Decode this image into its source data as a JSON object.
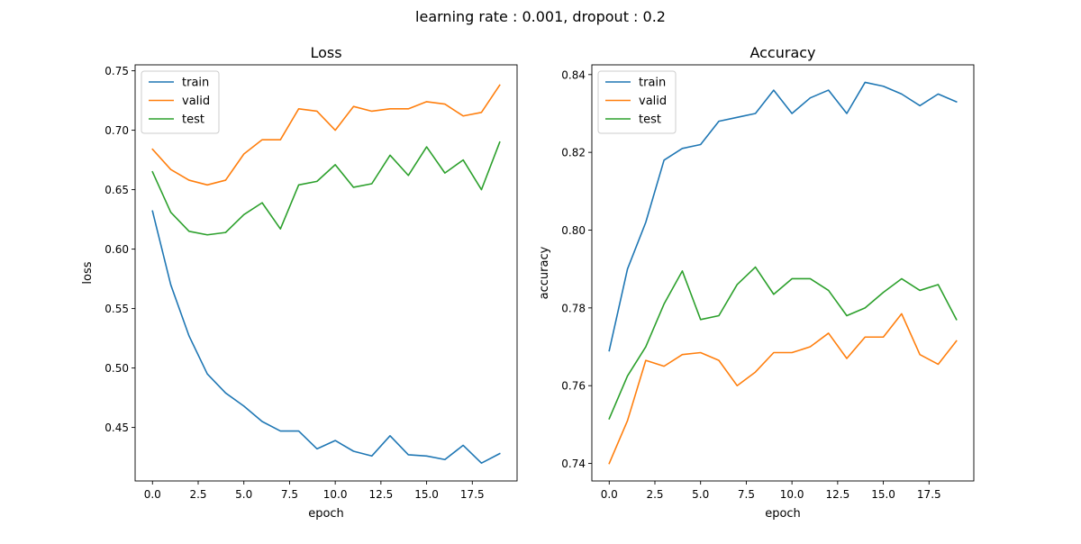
{
  "figure": {
    "title": "learning rate : 0.001, dropout : 0.2"
  },
  "chart_data": [
    {
      "type": "line",
      "title": "Loss",
      "xlabel": "epoch",
      "ylabel": "loss",
      "xlim": [
        -0.95,
        19.95
      ],
      "ylim": [
        0.405,
        0.755
      ],
      "xticks": [
        0.0,
        2.5,
        5.0,
        7.5,
        10.0,
        12.5,
        15.0,
        17.5
      ],
      "xtick_labels": [
        "0.0",
        "2.5",
        "5.0",
        "7.5",
        "10.0",
        "12.5",
        "15.0",
        "17.5"
      ],
      "yticks": [
        0.45,
        0.5,
        0.55,
        0.6,
        0.65,
        0.7,
        0.75
      ],
      "ytick_labels": [
        "0.45",
        "0.50",
        "0.55",
        "0.60",
        "0.65",
        "0.70",
        "0.75"
      ],
      "grid": false,
      "legend": "top-left",
      "x": [
        0,
        1,
        2,
        3,
        4,
        5,
        6,
        7,
        8,
        9,
        10,
        11,
        12,
        13,
        14,
        15,
        16,
        17,
        18,
        19
      ],
      "series": [
        {
          "name": "train",
          "color": "#1f77b4",
          "values": [
            0.632,
            0.57,
            0.527,
            0.495,
            0.479,
            0.468,
            0.455,
            0.447,
            0.447,
            0.432,
            0.439,
            0.43,
            0.426,
            0.443,
            0.427,
            0.426,
            0.423,
            0.435,
            0.42,
            0.428
          ]
        },
        {
          "name": "valid",
          "color": "#ff7f0e",
          "values": [
            0.684,
            0.667,
            0.658,
            0.654,
            0.658,
            0.68,
            0.692,
            0.692,
            0.718,
            0.716,
            0.7,
            0.72,
            0.716,
            0.718,
            0.718,
            0.724,
            0.722,
            0.712,
            0.715,
            0.738
          ]
        },
        {
          "name": "test",
          "color": "#2ca02c",
          "values": [
            0.665,
            0.631,
            0.615,
            0.612,
            0.614,
            0.629,
            0.639,
            0.617,
            0.654,
            0.657,
            0.671,
            0.652,
            0.655,
            0.679,
            0.662,
            0.686,
            0.664,
            0.675,
            0.65,
            0.69
          ]
        }
      ]
    },
    {
      "type": "line",
      "title": "Accuracy",
      "xlabel": "epoch",
      "ylabel": "accuracy",
      "xlim": [
        -0.95,
        19.95
      ],
      "ylim": [
        0.7355,
        0.8425
      ],
      "xticks": [
        0.0,
        2.5,
        5.0,
        7.5,
        10.0,
        12.5,
        15.0,
        17.5
      ],
      "xtick_labels": [
        "0.0",
        "2.5",
        "5.0",
        "7.5",
        "10.0",
        "12.5",
        "15.0",
        "17.5"
      ],
      "yticks": [
        0.74,
        0.76,
        0.78,
        0.8,
        0.82,
        0.84
      ],
      "ytick_labels": [
        "0.74",
        "0.76",
        "0.78",
        "0.80",
        "0.82",
        "0.84"
      ],
      "grid": false,
      "legend": "top-left",
      "x": [
        0,
        1,
        2,
        3,
        4,
        5,
        6,
        7,
        8,
        9,
        10,
        11,
        12,
        13,
        14,
        15,
        16,
        17,
        18,
        19
      ],
      "series": [
        {
          "name": "train",
          "color": "#1f77b4",
          "values": [
            0.769,
            0.79,
            0.802,
            0.818,
            0.821,
            0.822,
            0.828,
            0.829,
            0.83,
            0.836,
            0.83,
            0.834,
            0.836,
            0.83,
            0.838,
            0.837,
            0.835,
            0.832,
            0.835,
            0.833
          ]
        },
        {
          "name": "valid",
          "color": "#ff7f0e",
          "values": [
            0.74,
            0.751,
            0.7665,
            0.765,
            0.768,
            0.7685,
            0.7665,
            0.76,
            0.7635,
            0.7685,
            0.7685,
            0.77,
            0.7735,
            0.767,
            0.7725,
            0.7725,
            0.7785,
            0.768,
            0.7655,
            0.7715
          ]
        },
        {
          "name": "test",
          "color": "#2ca02c",
          "values": [
            0.7515,
            0.7625,
            0.77,
            0.781,
            0.7895,
            0.777,
            0.778,
            0.786,
            0.7905,
            0.7835,
            0.7875,
            0.7875,
            0.7845,
            0.778,
            0.78,
            0.784,
            0.7875,
            0.7845,
            0.786,
            0.777
          ]
        }
      ]
    }
  ]
}
